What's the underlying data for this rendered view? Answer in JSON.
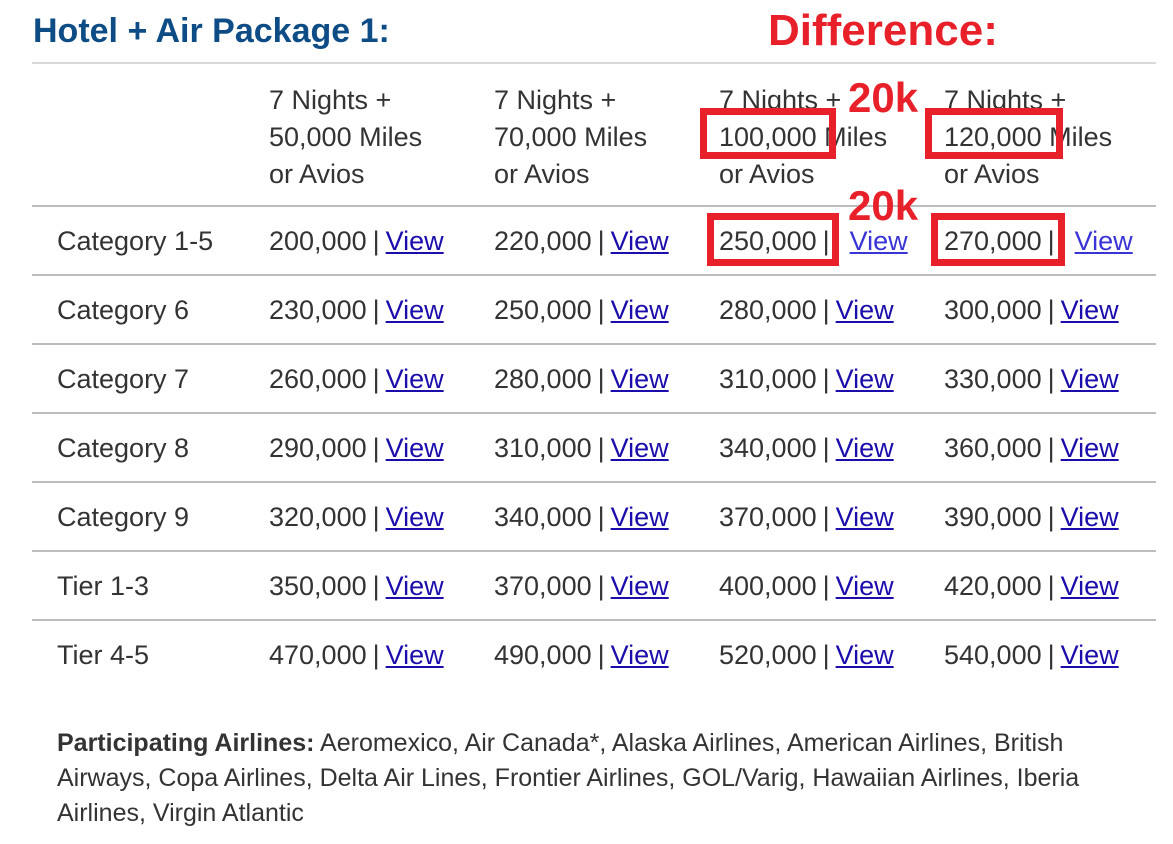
{
  "title": "Hotel + Air Package 1:",
  "difference_label": "Difference:",
  "columns": [
    {
      "line1": "7 Nights +",
      "line2_num": "50,000",
      "line2_rest": " Miles",
      "line3": "or Avios"
    },
    {
      "line1": "7 Nights +",
      "line2_num": "70,000",
      "line2_rest": " Miles",
      "line3": "or Avios"
    },
    {
      "line1": "7 Nights +",
      "line2_num": "100,000",
      "line2_rest": " Miles",
      "line3": "or Avios"
    },
    {
      "line1": "7 Nights +",
      "line2_num": "120,000",
      "line2_rest": " Miles",
      "line3": "or Avios"
    }
  ],
  "link_label": "View",
  "rows": [
    {
      "label": "Category 1-5",
      "values": [
        "200,000",
        "220,000",
        "250,000",
        "270,000"
      ]
    },
    {
      "label": "Category 6",
      "values": [
        "230,000",
        "250,000",
        "280,000",
        "300,000"
      ]
    },
    {
      "label": "Category 7",
      "values": [
        "260,000",
        "280,000",
        "310,000",
        "330,000"
      ]
    },
    {
      "label": "Category 8",
      "values": [
        "290,000",
        "310,000",
        "340,000",
        "360,000"
      ]
    },
    {
      "label": "Category 9",
      "values": [
        "320,000",
        "340,000",
        "370,000",
        "390,000"
      ]
    },
    {
      "label": "Tier 1-3",
      "values": [
        "350,000",
        "370,000",
        "400,000",
        "420,000"
      ]
    },
    {
      "label": "Tier 4-5",
      "values": [
        "470,000",
        "490,000",
        "520,000",
        "540,000"
      ]
    }
  ],
  "annotations": {
    "header_diff": "20k",
    "row_diff": "20k",
    "color": "#e8202a"
  },
  "footer": {
    "label": "Participating Airlines:",
    "text": " Aeromexico, Air Canada*, Alaska Airlines, American Airlines, British Airways, Copa Airlines, Delta Air Lines, Frontier Airlines, GOL/Varig, Hawaiian Airlines, Iberia Airlines, Virgin Atlantic"
  },
  "colors": {
    "title": "#0e4c85",
    "link": "#1a0dab",
    "text": "#333333"
  }
}
